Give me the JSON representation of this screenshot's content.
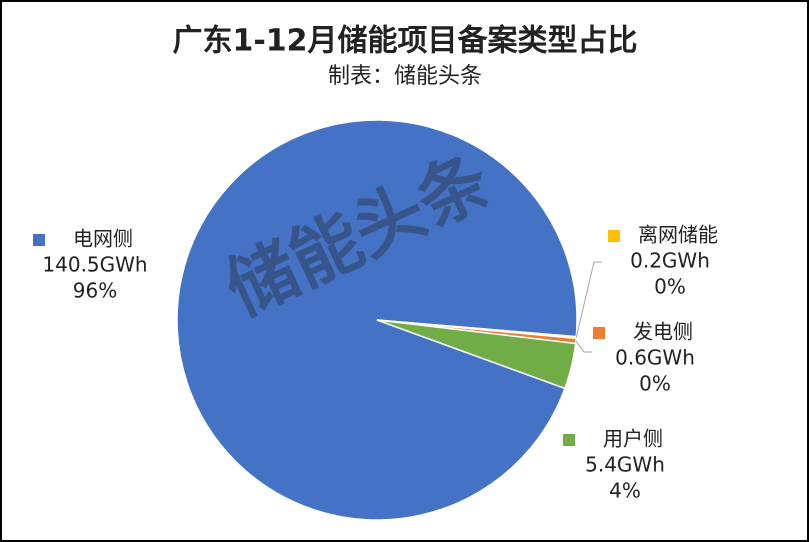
{
  "chart_data": {
    "type": "pie",
    "title": "广东1-12月储能项目备案类型占比",
    "subtitle": "制表：储能头条",
    "watermark": "储能头条",
    "categories": [
      "电网侧",
      "离网储能",
      "发电侧",
      "用户侧"
    ],
    "values": [
      140.5,
      0.2,
      0.6,
      5.4
    ],
    "value_labels": [
      "140.5GWh",
      "0.2GWh",
      "0.6GWh",
      "5.4GWh"
    ],
    "percent_labels": [
      "96%",
      "0%",
      "0%",
      "4%"
    ],
    "colors": [
      "#4472c4",
      "#ffc000",
      "#ed7d31",
      "#70ad47"
    ]
  }
}
